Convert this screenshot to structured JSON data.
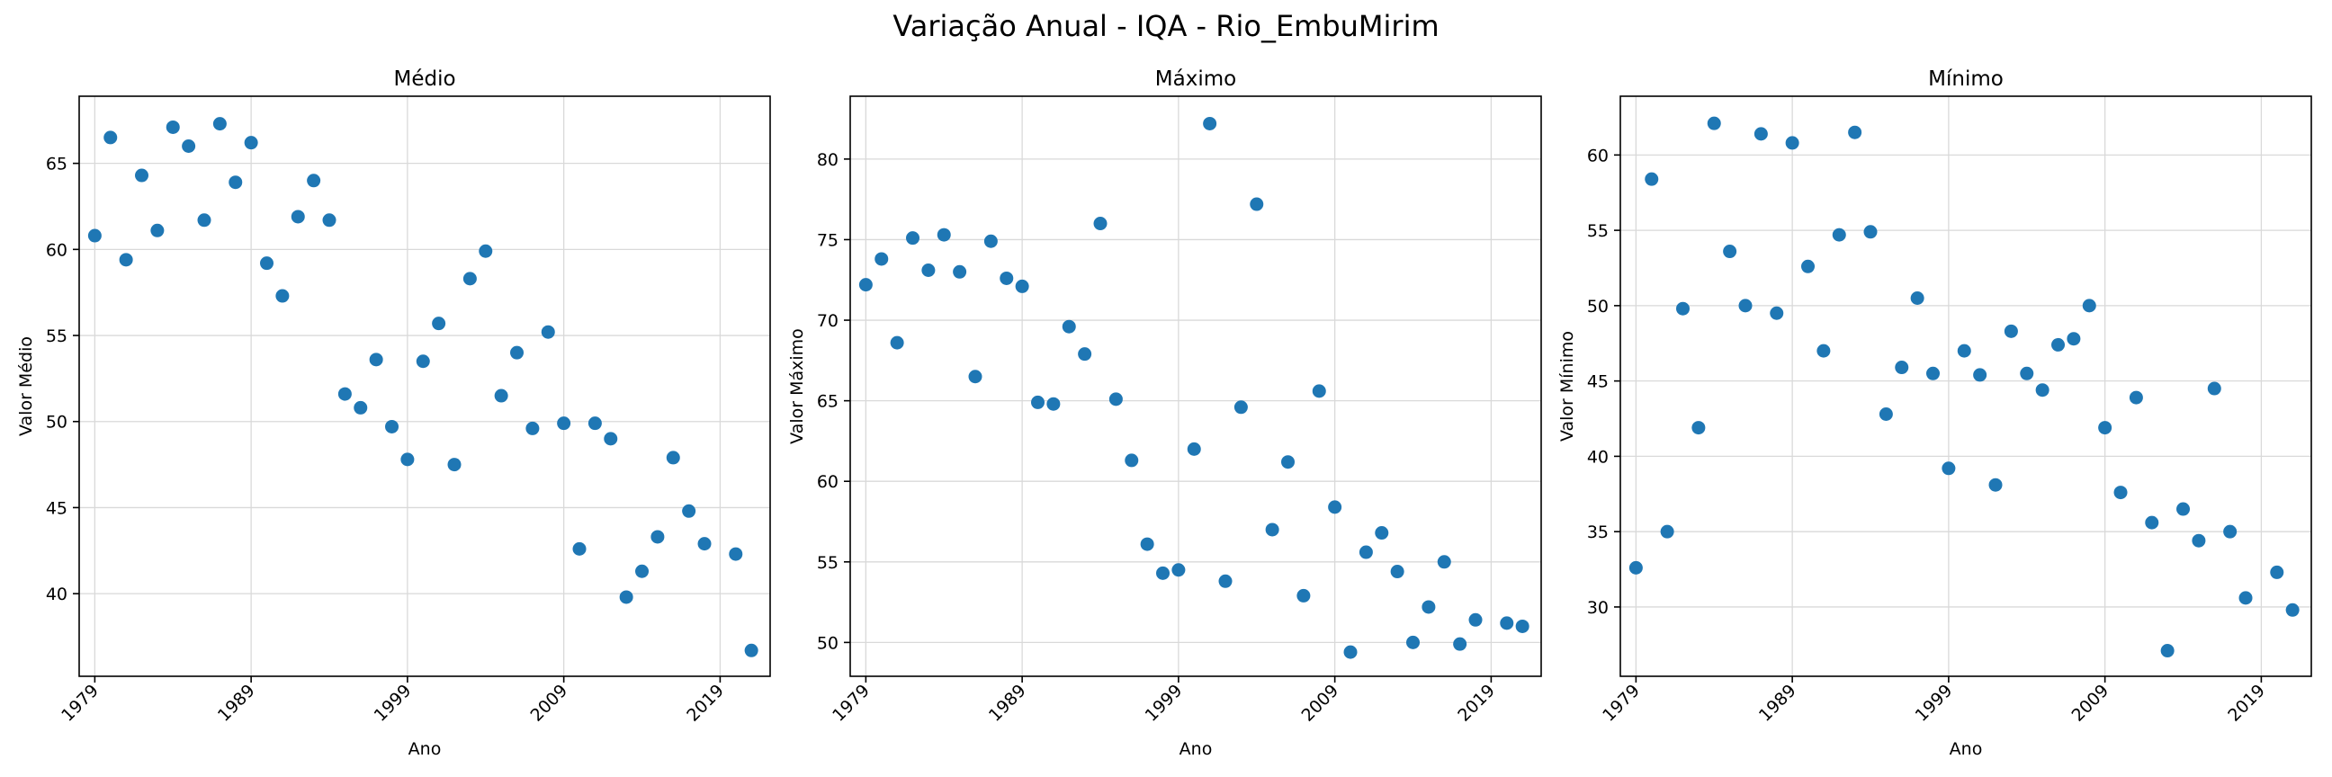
{
  "suptitle": "Variação Anual - IQA - Rio_EmbuMirim",
  "colors": {
    "marker": "#1f77b4",
    "grid": "#d9d9d9",
    "axis": "#000000"
  },
  "chart_data": [
    {
      "type": "scatter",
      "title": "Médio",
      "xlabel": "Ano",
      "ylabel": "Valor Médio",
      "grid": true,
      "xticks": [
        1979,
        1989,
        1999,
        2009,
        2019
      ],
      "yticks": [
        40,
        45,
        50,
        55,
        60,
        65
      ],
      "xlim": [
        1978,
        2022.2
      ],
      "ylim": [
        35.2,
        68.9
      ],
      "x": [
        1979,
        1980,
        1981,
        1982,
        1983,
        1984,
        1985,
        1986,
        1987,
        1988,
        1989,
        1990,
        1991,
        1992,
        1993,
        1994,
        1995,
        1996,
        1997,
        1998,
        1999,
        2000,
        2001,
        2002,
        2003,
        2004,
        2005,
        2006,
        2007,
        2008,
        2009,
        2010,
        2011,
        2012,
        2013,
        2014,
        2015,
        2016,
        2017,
        2018,
        2019,
        2020,
        2021
      ],
      "y": [
        60.8,
        66.5,
        59.4,
        64.3,
        61.1,
        67.1,
        66.0,
        61.7,
        67.3,
        63.9,
        66.2,
        59.2,
        57.3,
        61.9,
        64.0,
        61.7,
        51.6,
        50.8,
        53.6,
        49.7,
        47.8,
        53.5,
        55.7,
        47.5,
        58.3,
        59.9,
        51.5,
        54.0,
        49.6,
        55.2,
        49.9,
        42.6,
        49.9,
        49.0,
        39.8,
        41.3,
        43.3,
        47.9,
        44.8,
        42.9,
        null,
        42.3,
        36.7
      ]
    },
    {
      "type": "scatter",
      "title": "Máximo",
      "xlabel": "Ano",
      "ylabel": "Valor Máximo",
      "grid": true,
      "xticks": [
        1979,
        1989,
        1999,
        2009,
        2019
      ],
      "yticks": [
        50,
        55,
        60,
        65,
        70,
        75,
        80
      ],
      "xlim": [
        1978,
        2022.2
      ],
      "ylim": [
        47.9,
        83.9
      ],
      "x": [
        1979,
        1980,
        1981,
        1982,
        1983,
        1984,
        1985,
        1986,
        1987,
        1988,
        1989,
        1990,
        1991,
        1992,
        1993,
        1994,
        1995,
        1996,
        1997,
        1998,
        1999,
        2000,
        2001,
        2002,
        2003,
        2004,
        2005,
        2006,
        2007,
        2008,
        2009,
        2010,
        2011,
        2012,
        2013,
        2014,
        2015,
        2016,
        2017,
        2018,
        2019,
        2020,
        2021
      ],
      "y": [
        72.2,
        73.8,
        68.6,
        75.1,
        73.1,
        75.3,
        73.0,
        66.5,
        74.9,
        72.6,
        72.1,
        64.9,
        64.8,
        69.6,
        67.9,
        76.0,
        65.1,
        61.3,
        56.1,
        54.3,
        54.5,
        62.0,
        82.2,
        53.8,
        64.6,
        77.2,
        57.0,
        61.2,
        52.9,
        65.6,
        58.4,
        49.4,
        55.6,
        56.8,
        54.4,
        50.0,
        52.2,
        55.0,
        49.9,
        51.4,
        null,
        51.2,
        51.0
      ]
    },
    {
      "type": "scatter",
      "title": "Mínimo",
      "xlabel": "Ano",
      "ylabel": "Valor Mínimo",
      "grid": true,
      "xticks": [
        1979,
        1989,
        1999,
        2009,
        2019
      ],
      "yticks": [
        30,
        35,
        40,
        45,
        50,
        55,
        60
      ],
      "xlim": [
        1978,
        2022.2
      ],
      "ylim": [
        25.4,
        63.9
      ],
      "x": [
        1979,
        1980,
        1981,
        1982,
        1983,
        1984,
        1985,
        1986,
        1987,
        1988,
        1989,
        1990,
        1991,
        1992,
        1993,
        1994,
        1995,
        1996,
        1997,
        1998,
        1999,
        2000,
        2001,
        2002,
        2003,
        2004,
        2005,
        2006,
        2007,
        2008,
        2009,
        2010,
        2011,
        2012,
        2013,
        2014,
        2015,
        2016,
        2017,
        2018,
        2019,
        2020,
        2021
      ],
      "y": [
        32.6,
        58.4,
        35.0,
        49.8,
        41.9,
        62.1,
        53.6,
        50.0,
        61.4,
        49.5,
        60.8,
        52.6,
        47.0,
        54.7,
        61.5,
        54.9,
        42.8,
        45.9,
        50.5,
        45.5,
        39.2,
        47.0,
        45.4,
        38.1,
        48.3,
        45.5,
        44.4,
        47.4,
        47.8,
        50.0,
        41.9,
        37.6,
        43.9,
        35.6,
        27.1,
        36.5,
        34.4,
        44.5,
        35.0,
        30.6,
        null,
        32.3,
        29.8
      ]
    }
  ]
}
